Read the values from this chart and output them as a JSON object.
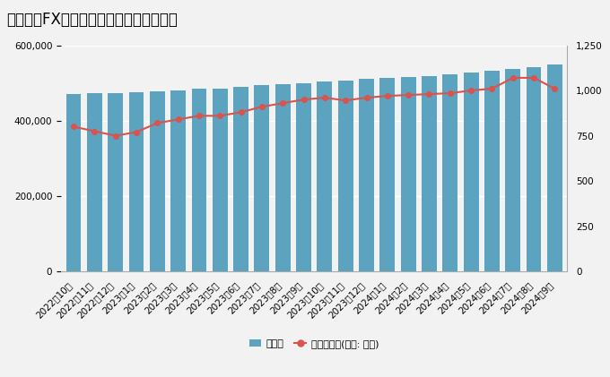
{
  "title": "みんなのFXの口座数と預かり資産の推移",
  "categories": [
    "2022年10月",
    "2022年11月",
    "2022年12月",
    "2023年1月",
    "2023年2月",
    "2023年3月",
    "2023年4月",
    "2023年5月",
    "2023年6月",
    "2023年7月",
    "2023年8月",
    "2023年9月",
    "2023年10月",
    "2023年11月",
    "2023年12月",
    "2024年1月",
    "2024年2月",
    "2024年3月",
    "2024年4月",
    "2024年5月",
    "2024年6月",
    "2024年7月",
    "2024年8月",
    "2024年9月"
  ],
  "accounts": [
    470000,
    472000,
    473000,
    476000,
    478000,
    481000,
    484000,
    486000,
    490000,
    494000,
    497000,
    500000,
    504000,
    507000,
    510000,
    514000,
    516000,
    519000,
    523000,
    527000,
    532000,
    537000,
    542000,
    548000
  ],
  "assets": [
    800,
    775,
    750,
    770,
    820,
    840,
    860,
    860,
    880,
    910,
    930,
    950,
    960,
    945,
    960,
    970,
    975,
    980,
    985,
    1000,
    1010,
    1070,
    1070,
    1010
  ],
  "bar_color": "#5ba3be",
  "line_color": "#d9534f",
  "bg_color": "#f2f2f2",
  "title_fontsize": 12,
  "left_ylim": [
    0,
    600000
  ],
  "right_ylim": [
    0,
    1250
  ],
  "left_yticks": [
    0,
    200000,
    400000,
    600000
  ],
  "right_yticks": [
    0,
    250,
    500,
    750,
    1000,
    1250
  ],
  "legend_label_bar": "口座数",
  "legend_label_line": "預かり資産(単位: 億円)"
}
